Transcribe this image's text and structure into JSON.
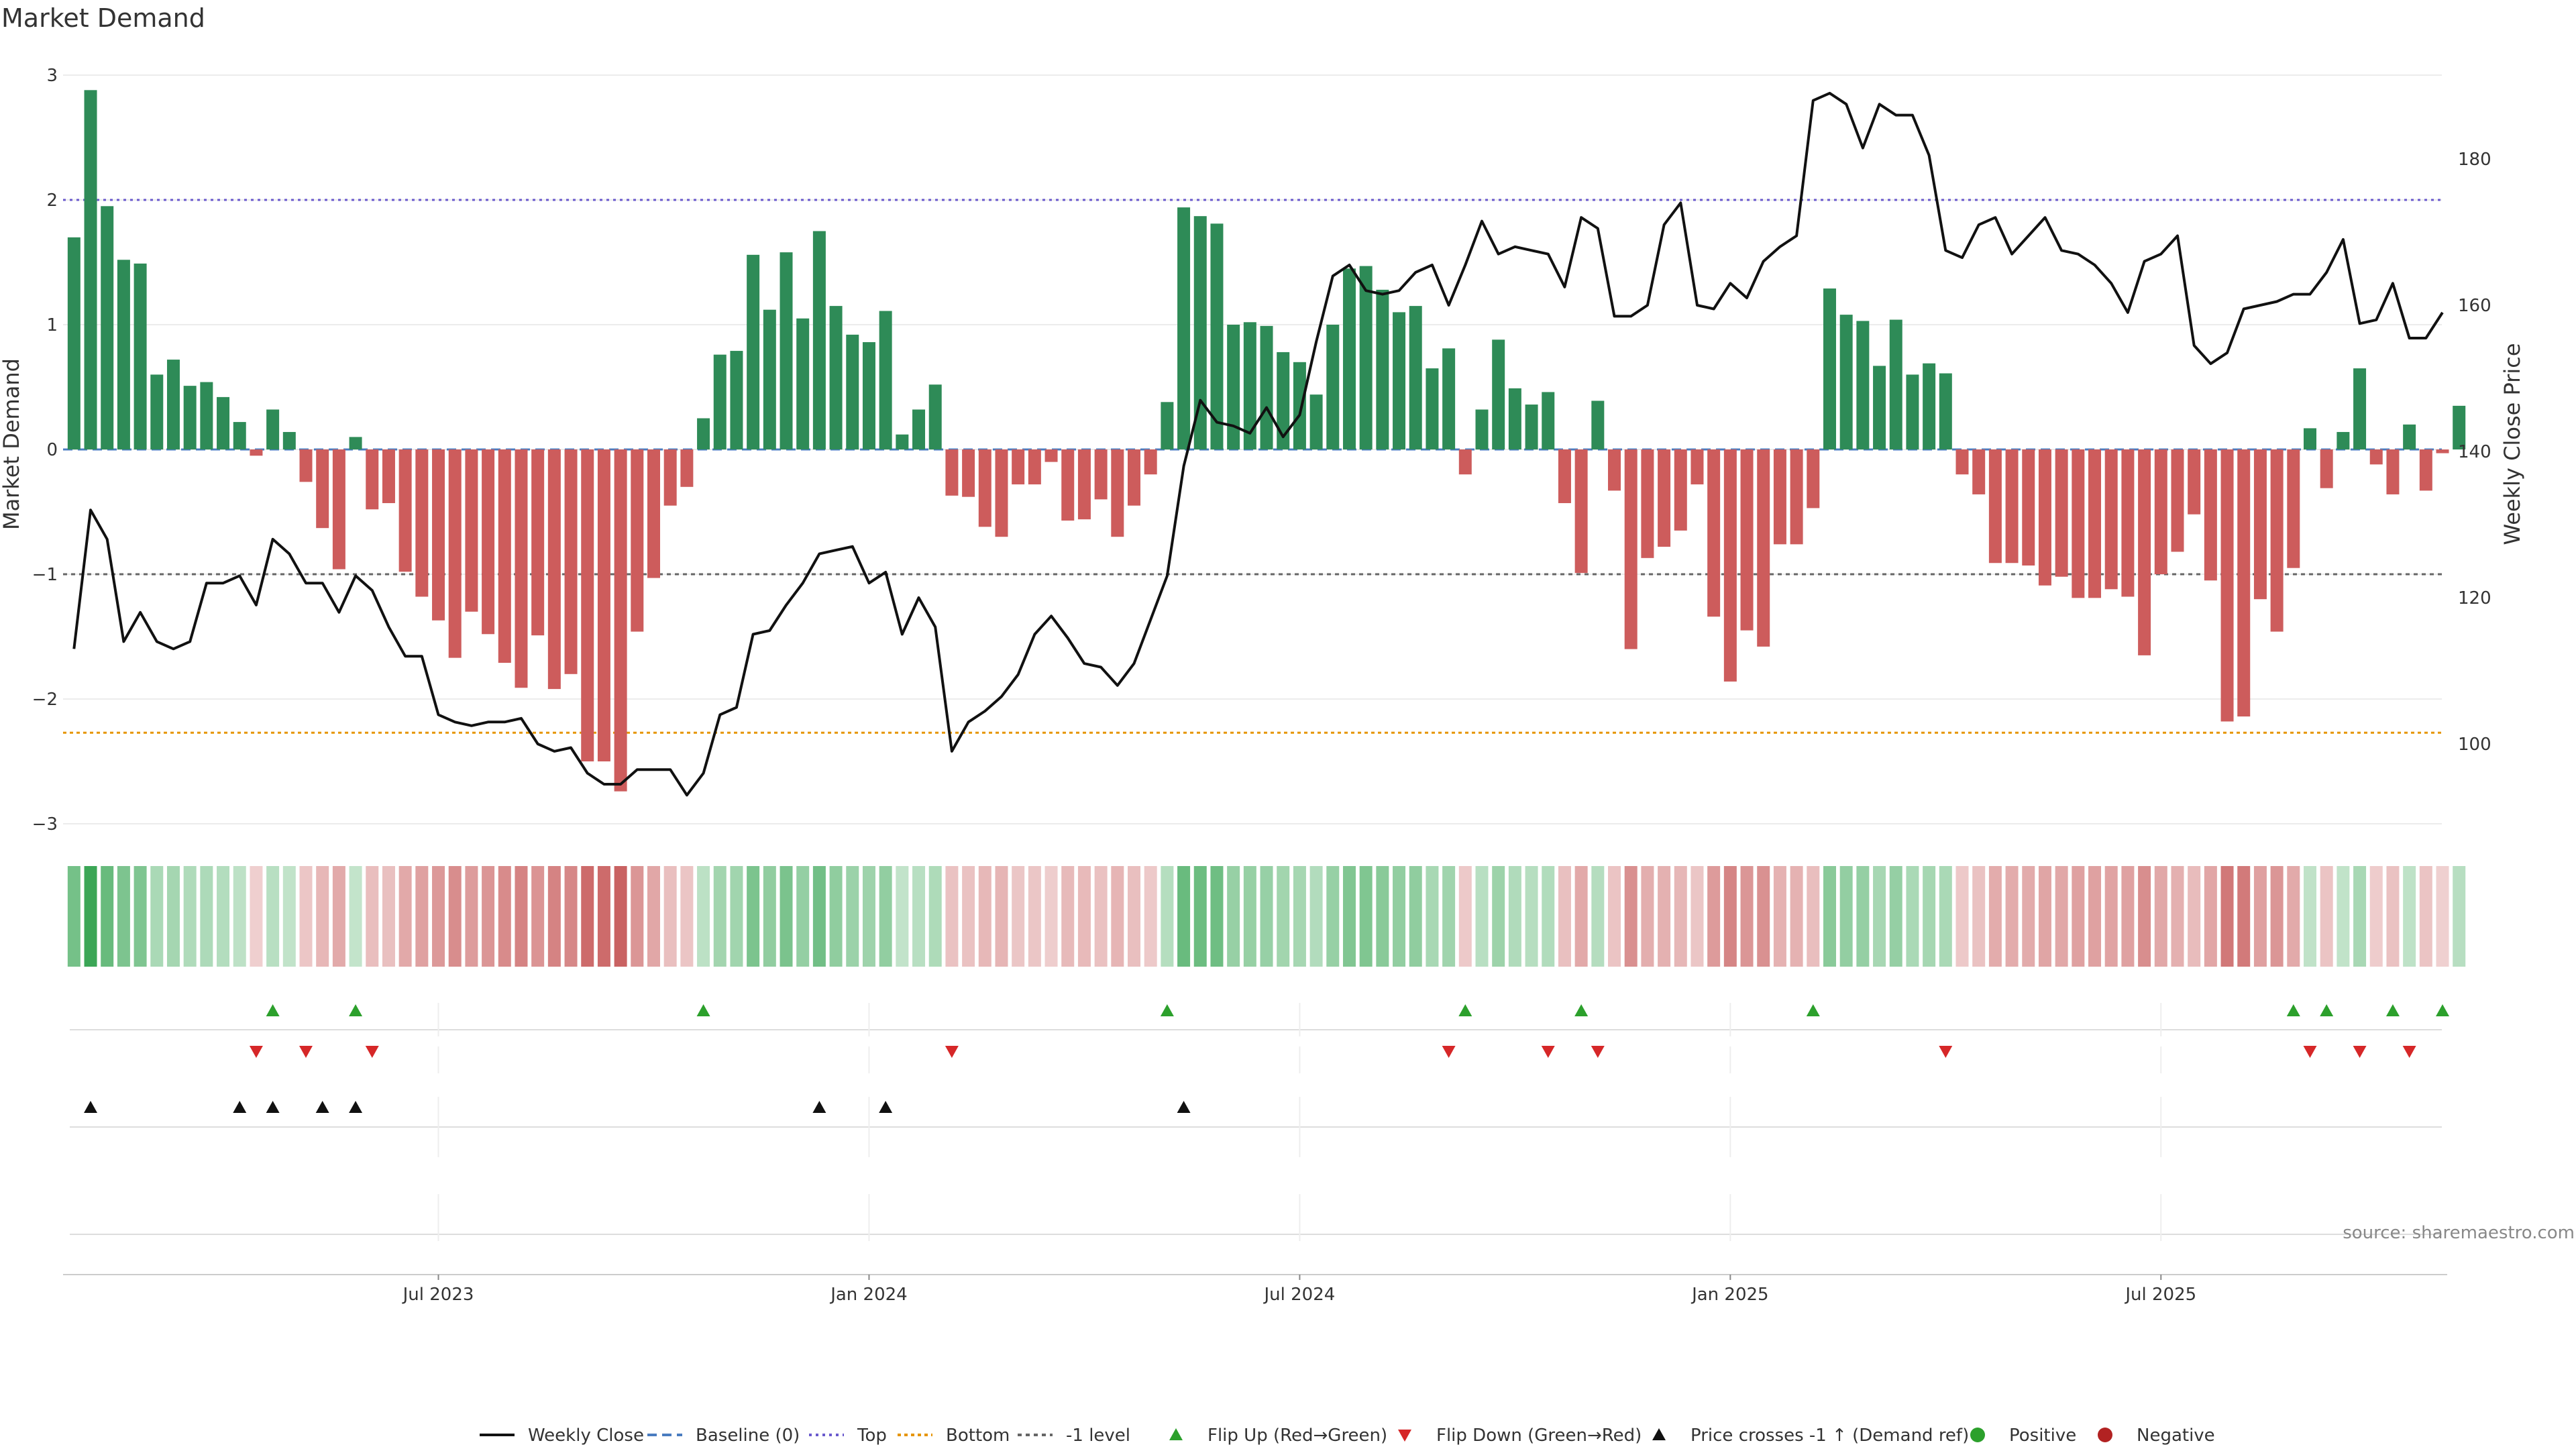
{
  "chart_data": {
    "type": "bar",
    "title": "Market Demand",
    "ylabel_left": "Market Demand",
    "ylabel_right": "Weekly Close Price",
    "left_ylim": [
      -3.3,
      3.3
    ],
    "left_ticks": [
      "3",
      "2",
      "1",
      "0",
      "−1",
      "−2",
      "−3"
    ],
    "left_tick_values": [
      3,
      2,
      1,
      0,
      -1,
      -2,
      -3
    ],
    "right_ylim": [
      88,
      192
    ],
    "right_ticks": [
      "180",
      "160",
      "140",
      "120",
      "100"
    ],
    "right_tick_values": [
      180,
      160,
      140,
      120,
      100
    ],
    "x_ticks": [
      "Jul 2023",
      "Jan 2024",
      "Jul 2024",
      "Jan 2025",
      "Jul 2025"
    ],
    "x_tick_weeks": [
      22,
      48,
      74,
      100,
      126
    ],
    "reference_lines": {
      "top": 2.0,
      "minus_one": -1.0,
      "bottom": -2.27,
      "baseline": 0
    },
    "colors": {
      "positive": "#2e8b57",
      "negative": "#cd5c5c",
      "price": "#111111",
      "top": "#6a5acd",
      "bottom": "#e69500",
      "minus_one": "#666666",
      "flip_up": "#2ca02c",
      "flip_down": "#d62728",
      "cross": "#111111"
    },
    "demand": [
      1.7,
      2.88,
      1.95,
      1.52,
      1.49,
      0.6,
      0.72,
      0.51,
      0.54,
      0.42,
      0.22,
      -0.05,
      0.32,
      0.14,
      -0.26,
      -0.63,
      -0.96,
      0.1,
      -0.48,
      -0.43,
      -0.98,
      -1.18,
      -1.37,
      -1.67,
      -1.3,
      -1.48,
      -1.71,
      -1.91,
      -1.49,
      -1.92,
      -1.8,
      -2.5,
      -2.5,
      -2.74,
      -1.46,
      -1.03,
      -0.45,
      -0.3,
      0.25,
      0.76,
      0.79,
      1.56,
      1.12,
      1.58,
      1.05,
      1.75,
      1.15,
      0.92,
      0.86,
      1.11,
      0.12,
      0.32,
      0.52,
      -0.37,
      -0.38,
      -0.62,
      -0.7,
      -0.28,
      -0.28,
      -0.1,
      -0.57,
      -0.56,
      -0.4,
      -0.7,
      -0.45,
      -0.2,
      0.38,
      1.94,
      1.87,
      1.81,
      1.0,
      1.02,
      0.99,
      0.78,
      0.7,
      0.44,
      1.0,
      1.45,
      1.47,
      1.28,
      1.1,
      1.15,
      0.65,
      0.81,
      -0.2,
      0.32,
      0.88,
      0.49,
      0.36,
      0.46,
      -0.43,
      -0.99,
      0.39,
      -0.33,
      -1.6,
      -0.87,
      -0.78,
      -0.65,
      -0.28,
      -1.34,
      -1.86,
      -1.45,
      -1.58,
      -0.76,
      -0.76,
      -0.47,
      1.29,
      1.08,
      1.03,
      0.67,
      1.04,
      0.6,
      0.69,
      0.61,
      -0.2,
      -0.36,
      -0.91,
      -0.91,
      -0.93,
      -1.09,
      -1.02,
      -1.19,
      -1.19,
      -1.12,
      -1.18,
      -1.65,
      -1.0,
      -0.82,
      -0.52,
      -1.05,
      -2.18,
      -2.14,
      -1.2,
      -1.46,
      -0.95,
      0.17,
      -0.31,
      0.14,
      0.65,
      -0.12,
      -0.36,
      0.2,
      -0.33,
      -0.03,
      0.35
    ],
    "weekly_close": [
      113,
      132,
      128,
      114,
      118,
      114,
      113,
      114,
      122,
      122,
      123,
      119,
      128,
      126,
      122,
      122,
      118,
      123,
      121,
      116,
      112,
      112,
      104,
      103,
      102.5,
      103,
      103,
      103.5,
      100,
      99,
      99.5,
      96,
      94.5,
      94.5,
      96.5,
      96.5,
      96.5,
      93,
      96,
      104,
      105,
      115,
      115.5,
      119,
      122,
      126,
      126.5,
      127,
      122,
      123.5,
      115,
      120,
      116,
      99,
      103,
      104.5,
      106.5,
      109.5,
      115,
      117.5,
      114.5,
      111,
      110.5,
      108,
      111,
      117,
      123,
      138,
      147,
      144,
      143.5,
      142.5,
      146,
      142,
      145,
      155,
      164,
      165.5,
      162,
      161.5,
      162,
      164.5,
      165.5,
      160,
      165.5,
      171.5,
      167,
      168,
      167.5,
      167,
      162.5,
      172,
      170.5,
      158.5,
      158.5,
      160,
      171,
      174,
      160,
      159.5,
      163,
      161,
      166,
      168,
      169.5,
      188,
      189,
      187.5,
      181.5,
      187.5,
      186,
      186,
      180.5,
      167.5,
      166.5,
      171,
      172,
      167,
      169.5,
      172,
      167.5,
      167,
      165.5,
      163,
      159,
      166,
      167,
      169.5,
      154.5,
      152,
      153.5,
      159.5,
      160,
      160.5,
      161.5,
      161.5,
      164.5,
      169,
      157.5,
      158,
      163,
      155.5,
      155.5,
      159
    ],
    "flip_up_weeks": [
      12,
      17,
      38,
      66,
      84,
      91,
      105,
      134,
      136,
      140,
      143
    ],
    "flip_down_weeks": [
      11,
      14,
      18,
      53,
      83,
      89,
      92,
      113,
      135,
      138,
      141
    ],
    "price_cross_weeks": [
      1,
      10,
      12,
      15,
      17,
      45,
      49,
      67
    ],
    "legend": [
      "Weekly Close",
      "Baseline (0)",
      "Top",
      "Bottom",
      "-1 level",
      "Flip Up (Red→Green)",
      "Flip Down (Green→Red)",
      "Price crosses -1 ↑ (Demand ref)",
      "Positive",
      "Negative"
    ],
    "legend_placement": "bottom-center",
    "source": "source: sharemaestro.com"
  }
}
